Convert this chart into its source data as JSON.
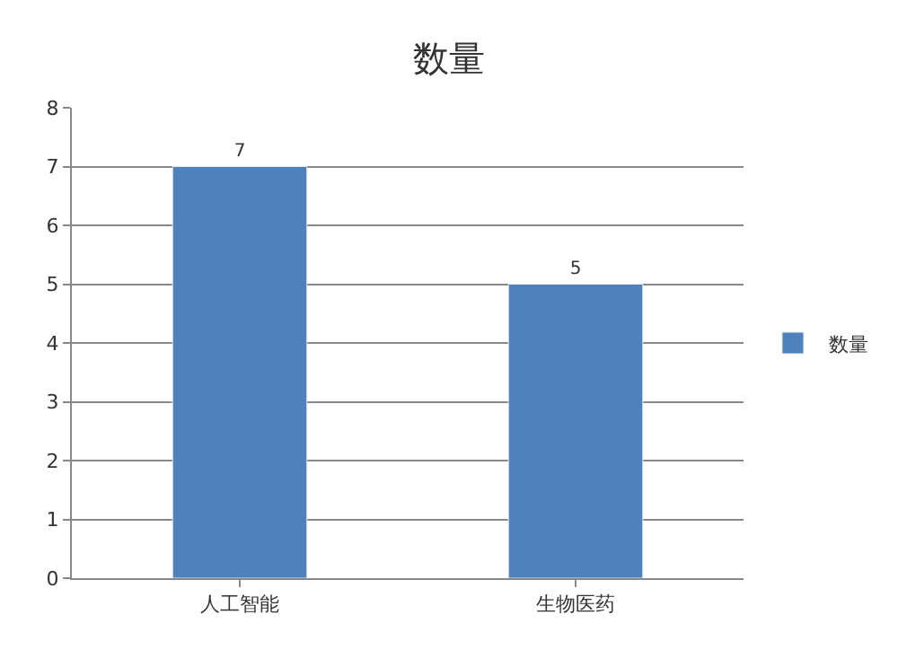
{
  "chart_data": {
    "type": "bar",
    "title": "数量",
    "categories": [
      "人工智能",
      "生物医药"
    ],
    "series": [
      {
        "name": "数量",
        "color": "#4f81bd",
        "values": [
          7,
          5
        ]
      }
    ],
    "ylim": [
      0,
      8
    ],
    "yticks": [
      0,
      1,
      2,
      3,
      4,
      5,
      6,
      7,
      8
    ],
    "grid": "y",
    "legend": "right",
    "data_labels": true
  }
}
